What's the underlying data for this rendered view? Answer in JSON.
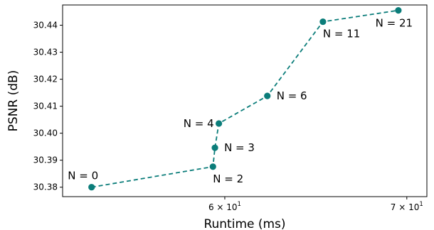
{
  "chart_data": {
    "type": "line",
    "title": "",
    "xlabel": "Runtime (ms)",
    "ylabel": "PSNR (dB)",
    "x_scale": "log",
    "xlim": [
      52.3,
      71.2
    ],
    "ylim": [
      30.3765,
      30.4475
    ],
    "grid": false,
    "line_style": "dashed",
    "color": "#0b7d7a",
    "x_ticks": [
      {
        "value": 60,
        "base": "6 × 10",
        "exp": "1"
      },
      {
        "value": 70,
        "base": "7 × 10",
        "exp": "1"
      }
    ],
    "y_ticks": [
      {
        "value": 30.38,
        "label": "30.38"
      },
      {
        "value": 30.39,
        "label": "30.39"
      },
      {
        "value": 30.4,
        "label": "30.40"
      },
      {
        "value": 30.41,
        "label": "30.41"
      },
      {
        "value": 30.42,
        "label": "30.42"
      },
      {
        "value": 30.43,
        "label": "30.43"
      },
      {
        "value": 30.44,
        "label": "30.44"
      }
    ],
    "points": [
      {
        "label": "N = 0",
        "x": 53.6,
        "y": 30.38,
        "pos": "above"
      },
      {
        "label": "N = 2",
        "x": 59.4,
        "y": 30.3876,
        "pos": "below-right"
      },
      {
        "label": "N = 3",
        "x": 59.5,
        "y": 30.3946,
        "pos": "right"
      },
      {
        "label": "N = 4",
        "x": 59.7,
        "y": 30.4036,
        "pos": "left"
      },
      {
        "label": "N = 6",
        "x": 62.2,
        "y": 30.4138,
        "pos": "right"
      },
      {
        "label": "N = 11",
        "x": 65.2,
        "y": 30.4413,
        "pos": "below-right"
      },
      {
        "label": "N = 21",
        "x": 69.5,
        "y": 30.4455,
        "pos": "below"
      }
    ]
  }
}
